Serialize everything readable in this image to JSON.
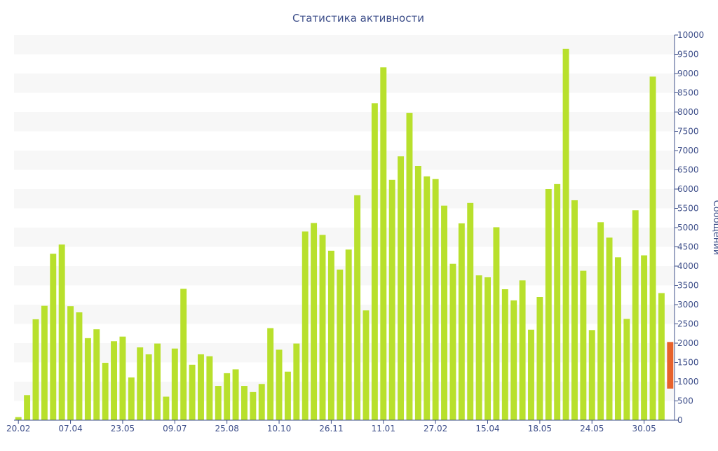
{
  "chart_data": {
    "type": "bar",
    "title": "Статистика активности",
    "xlabel": "",
    "ylabel": "Сообщений",
    "ylim": [
      0,
      10000
    ],
    "yticks": [
      0,
      500,
      1000,
      1500,
      2000,
      2500,
      3000,
      3500,
      4000,
      4500,
      5000,
      5500,
      6000,
      6500,
      7000,
      7500,
      8000,
      8500,
      9000,
      9500,
      10000
    ],
    "y_axis_position": "right",
    "grid": "alternating horizontal bands",
    "legend": "none",
    "x_tick_labels": [
      {
        "label": "20.02",
        "index": 0
      },
      {
        "label": "07.04",
        "index": 6
      },
      {
        "label": "23.05",
        "index": 12
      },
      {
        "label": "09.07",
        "index": 18
      },
      {
        "label": "25.08",
        "index": 24
      },
      {
        "label": "10.10",
        "index": 30
      },
      {
        "label": "26.11",
        "index": 36
      },
      {
        "label": "11.01",
        "index": 42
      },
      {
        "label": "27.02",
        "index": 48
      },
      {
        "label": "15.04",
        "index": 54
      },
      {
        "label": "18.05",
        "index": 60
      },
      {
        "label": "24.05",
        "index": 66
      },
      {
        "label": "30.05",
        "index": 72
      }
    ],
    "values": [
      80,
      650,
      2620,
      2970,
      4320,
      4560,
      2960,
      2800,
      2130,
      2360,
      1490,
      2050,
      2170,
      1110,
      1890,
      1710,
      1990,
      610,
      1860,
      3410,
      1440,
      1710,
      1660,
      890,
      1220,
      1320,
      890,
      730,
      940,
      2390,
      1830,
      1260,
      1990,
      4900,
      5120,
      4810,
      4400,
      3910,
      4430,
      5840,
      2850,
      8230,
      9160,
      6240,
      6850,
      7980,
      6600,
      6330,
      6260,
      5570,
      4060,
      5110,
      5640,
      3760,
      3710,
      5010,
      3400,
      3110,
      3630,
      2350,
      3200,
      6000,
      6130,
      9640,
      5710,
      3880,
      2340,
      5140,
      4740,
      4230,
      2630,
      5450,
      4280,
      8920,
      3300
    ],
    "highlight_bar": {
      "y_start": 820,
      "y_end": 2030
    },
    "colors": {
      "bar": "#b8e02c",
      "highlight": "#e7622c",
      "band": "#f7f7f7",
      "text": "#3e4f8a",
      "axis": "#3e4f8a"
    }
  }
}
